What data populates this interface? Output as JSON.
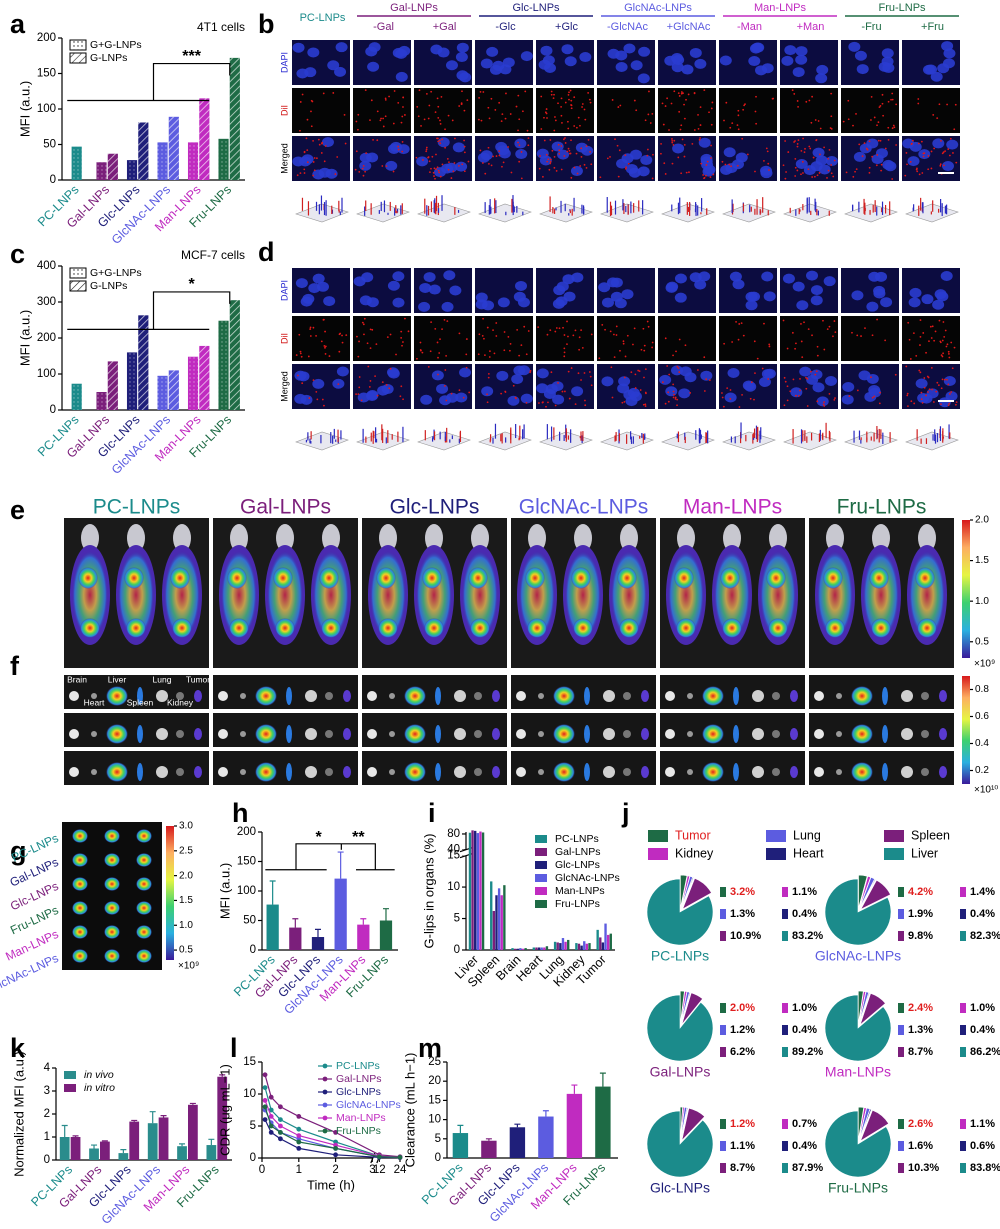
{
  "chart_data": [
    {
      "panel": "a",
      "type": "bar",
      "title": "4T1 cells",
      "ylabel": "MFI (a.u.)",
      "categories": [
        "PC-LNPs",
        "Gal-LNPs",
        "Glc-LNPs",
        "GlcNAc-LNPs",
        "Man-LNPs",
        "Fru-LNPs"
      ],
      "category_colors": [
        "#1b8b8b",
        "#7b1f7b",
        "#1f1f7a",
        "#5c5ce0",
        "#c02bc0",
        "#1e6b45"
      ],
      "series": [
        {
          "name": "G+G-LNPs",
          "pattern": "dots",
          "values": [
            47,
            25,
            28,
            53,
            53,
            58
          ]
        },
        {
          "name": "G-LNPs",
          "pattern": "hatch",
          "values": [
            null,
            37,
            81,
            89,
            115,
            172
          ]
        }
      ],
      "ylim": [
        0,
        200
      ],
      "yticks": [
        0,
        50,
        100,
        150,
        200
      ],
      "significance": [
        "***"
      ],
      "legend": "upper left"
    },
    {
      "panel": "c",
      "type": "bar",
      "title": "MCF-7 cells",
      "ylabel": "MFI (a.u.)",
      "categories": [
        "PC-LNPs",
        "Gal-LNPs",
        "Glc-LNPs",
        "GlcNAc-LNPs",
        "Man-LNPs",
        "Fru-LNPs"
      ],
      "category_colors": [
        "#1b8b8b",
        "#7b1f7b",
        "#1f1f7a",
        "#5c5ce0",
        "#c02bc0",
        "#1e6b45"
      ],
      "series": [
        {
          "name": "G+G-LNPs",
          "pattern": "dots",
          "values": [
            73,
            50,
            160,
            95,
            148,
            248
          ]
        },
        {
          "name": "G-LNPs",
          "pattern": "hatch",
          "values": [
            null,
            135,
            263,
            110,
            178,
            305
          ]
        }
      ],
      "ylim": [
        0,
        400
      ],
      "yticks": [
        0,
        100,
        200,
        300,
        400
      ],
      "significance": [
        "*"
      ],
      "legend": "upper left"
    },
    {
      "panel": "h",
      "type": "bar",
      "ylabel": "MFI (a.u.)",
      "categories": [
        "PC-LNPs",
        "Gal-LNPs",
        "Glc-LNPs",
        "GlcNAc-LNPs",
        "Man-LNPs",
        "Fru-LNPs"
      ],
      "category_colors": [
        "#1b8b8b",
        "#7b1f7b",
        "#1f1f7a",
        "#5c5ce0",
        "#c02bc0",
        "#1e6b45"
      ],
      "values": [
        77,
        38,
        22,
        121,
        43,
        50
      ],
      "errors": [
        40,
        15,
        13,
        45,
        10,
        20
      ],
      "ylim": [
        0,
        200
      ],
      "yticks": [
        0,
        50,
        100,
        150,
        200
      ],
      "significance": [
        "*",
        "**"
      ]
    },
    {
      "panel": "i",
      "type": "bar",
      "ylabel": "G-lips in organs (%)",
      "categories": [
        "Liver",
        "Spleen",
        "Brain",
        "Heart",
        "Lung",
        "Kidney",
        "Tumor"
      ],
      "series": [
        {
          "name": "PC-LNPs",
          "color": "#1b8b8b",
          "values": [
            83.2,
            10.9,
            0.3,
            0.4,
            1.3,
            1.1,
            3.2
          ]
        },
        {
          "name": "Gal-LNPs",
          "color": "#7b1f7b",
          "values": [
            89.2,
            6.2,
            0.2,
            0.4,
            1.2,
            1.0,
            2.0
          ]
        },
        {
          "name": "Glc-LNPs",
          "color": "#1f1f7a",
          "values": [
            87.9,
            8.7,
            0.2,
            0.4,
            1.1,
            0.7,
            1.2
          ]
        },
        {
          "name": "GlcNAc-LNPs",
          "color": "#5c5ce0",
          "values": [
            82.3,
            9.8,
            0.3,
            0.4,
            1.9,
            1.4,
            4.2
          ]
        },
        {
          "name": "Man-LNPs",
          "color": "#c02bc0",
          "values": [
            86.2,
            8.7,
            0.2,
            0.4,
            1.3,
            1.0,
            2.4
          ]
        },
        {
          "name": "Fru-LNPs",
          "color": "#1e6b45",
          "values": [
            83.8,
            10.3,
            0.3,
            0.6,
            1.6,
            1.1,
            2.6
          ]
        }
      ],
      "ylim": [
        0,
        85
      ],
      "axis_break": [
        15,
        40
      ],
      "yticks": [
        0,
        5,
        10,
        15,
        40,
        80
      ],
      "legend": "upper right"
    },
    {
      "panel": "j",
      "type": "pie",
      "categories": [
        "Tumor",
        "Kidney",
        "Lung",
        "Heart",
        "Spleen",
        "Liver"
      ],
      "colors": [
        "#1e6b45",
        "#c02bc0",
        "#5c5ce0",
        "#1f1f7a",
        "#7b1f7b",
        "#1b8b8b"
      ],
      "label_colors": [
        "#e01e1e",
        "#000000",
        "#000000",
        "#000000",
        "#000000",
        "#000000"
      ],
      "pies": [
        {
          "name": "PC-LNPs",
          "color": "#1b8b8b",
          "values": [
            3.2,
            1.1,
            1.3,
            0.4,
            10.9,
            83.2
          ],
          "value_labels": [
            "3.2%",
            "1.1%",
            "1.3%",
            "0.4%",
            "10.9%",
            "83.2%"
          ]
        },
        {
          "name": "GlcNAc-LNPs",
          "color": "#5c5ce0",
          "values": [
            4.2,
            1.4,
            1.9,
            0.4,
            9.8,
            82.3
          ],
          "value_labels": [
            "4.2%",
            "1.4%",
            "1.9%",
            "0.4%",
            "9.8%",
            "82.3%"
          ]
        },
        {
          "name": "Gal-LNPs",
          "color": "#7b1f7b",
          "values": [
            2.0,
            1.0,
            1.2,
            0.4,
            6.2,
            89.2
          ],
          "value_labels": [
            "2.0%",
            "1.0%",
            "1.2%",
            "0.4%",
            "6.2%",
            "89.2%"
          ]
        },
        {
          "name": "Man-LNPs",
          "color": "#c02bc0",
          "values": [
            2.4,
            1.0,
            1.3,
            0.4,
            8.7,
            86.2
          ],
          "value_labels": [
            "2.4%",
            "1.0%",
            "1.3%",
            "0.4%",
            "8.7%",
            "86.2%"
          ]
        },
        {
          "name": "Glc-LNPs",
          "color": "#1f1f7a",
          "values": [
            1.2,
            0.7,
            1.1,
            0.4,
            8.7,
            87.9
          ],
          "value_labels": [
            "1.2%",
            "0.7%",
            "1.1%",
            "0.4%",
            "8.7%",
            "87.9%"
          ]
        },
        {
          "name": "Fru-LNPs",
          "color": "#1e6b45",
          "values": [
            2.6,
            1.1,
            1.6,
            0.6,
            10.3,
            83.8
          ],
          "value_labels": [
            "2.6%",
            "1.1%",
            "1.6%",
            "0.6%",
            "10.3%",
            "83.8%"
          ]
        }
      ]
    },
    {
      "panel": "k",
      "type": "bar",
      "ylabel": "Normalized MFI (a.u.)",
      "categories": [
        "PC-LNPs",
        "Gal-LNPs",
        "Glc-LNPs",
        "GlcNAc-LNPs",
        "Man-LNPs",
        "Fru-LNPs"
      ],
      "category_colors": [
        "#1b8b8b",
        "#7b1f7b",
        "#1f1f7a",
        "#5c5ce0",
        "#c02bc0",
        "#1e6b45"
      ],
      "series": [
        {
          "name": "in vivo",
          "color": "#2a8c8c",
          "values": [
            1.0,
            0.5,
            0.3,
            1.6,
            0.6,
            0.65
          ],
          "errors": [
            0.5,
            0.15,
            0.15,
            0.5,
            0.1,
            0.25
          ]
        },
        {
          "name": "in vitro",
          "color": "#7b1f7b",
          "values": [
            1.0,
            0.8,
            1.67,
            1.85,
            2.4,
            3.62
          ],
          "errors": [
            0.05,
            0.03,
            0.05,
            0.08,
            0.06,
            0.08
          ]
        }
      ],
      "ylim": [
        0,
        4
      ],
      "yticks": [
        0,
        1,
        2,
        3,
        4
      ],
      "legend": "upper left",
      "legend_italic": true
    },
    {
      "panel": "l",
      "type": "line",
      "xlabel": "Time (h)",
      "ylabel": "CDR (μg mL−1)",
      "x": [
        0.083,
        0.25,
        0.5,
        1,
        2,
        12,
        24
      ],
      "series": [
        {
          "name": "PC-LNPs",
          "color": "#1b8b8b",
          "values": [
            11,
            7.5,
            6,
            4.5,
            2.5,
            0.3,
            0.1
          ]
        },
        {
          "name": "Gal-LNPs",
          "color": "#7b1f7b",
          "values": [
            13,
            9.5,
            8,
            6.5,
            4,
            0.5,
            0.2
          ]
        },
        {
          "name": "Glc-LNPs",
          "color": "#1f1f7a",
          "values": [
            6,
            4,
            3,
            1.5,
            0.5,
            0.1,
            0.05
          ]
        },
        {
          "name": "GlcNAc-LNPs",
          "color": "#5c5ce0",
          "values": [
            7.5,
            5.5,
            4,
            3,
            1.5,
            0.2,
            0.1
          ]
        },
        {
          "name": "Man-LNPs",
          "color": "#c02bc0",
          "values": [
            9,
            6.5,
            5,
            3.5,
            2,
            0.3,
            0.1
          ]
        },
        {
          "name": "Fru-LNPs",
          "color": "#1e6b45",
          "values": [
            8,
            5,
            4,
            2.5,
            1.5,
            0.2,
            0.1
          ]
        }
      ],
      "xlim": [
        0,
        24
      ],
      "x_axis_break": [
        3,
        12
      ],
      "xticks": [
        0,
        1,
        2,
        3,
        12,
        24
      ],
      "ylim": [
        0,
        15
      ],
      "yticks": [
        0,
        5,
        10,
        15
      ],
      "legend": "upper right"
    },
    {
      "panel": "m",
      "type": "bar",
      "ylabel": "Clearance (mL h−1)",
      "categories": [
        "PC-LNPs",
        "Gal-LNPs",
        "Glc-LNPs",
        "GlcNAc-LNPs",
        "Man-LNPs",
        "Fru-LNPs"
      ],
      "category_colors": [
        "#1b8b8b",
        "#7b1f7b",
        "#1f1f7a",
        "#5c5ce0",
        "#c02bc0",
        "#1e6b45"
      ],
      "values": [
        6.5,
        4.5,
        8,
        10.8,
        16.7,
        18.6
      ],
      "errors": [
        2,
        0.5,
        0.8,
        1.5,
        2.3,
        3.5
      ],
      "ylim": [
        0,
        25
      ],
      "yticks": [
        0,
        5,
        10,
        15,
        20,
        25
      ]
    }
  ],
  "image_panels": {
    "b": {
      "panel": "b",
      "control": "PC-LNPs",
      "control_color": "#1b8b8b",
      "groups": [
        {
          "name": "Gal-LNPs",
          "color": "#7b1f7b",
          "columns": [
            "-Gal",
            "+Gal"
          ]
        },
        {
          "name": "Glc-LNPs",
          "color": "#1f1f7a",
          "columns": [
            "-Glc",
            "+Glc"
          ]
        },
        {
          "name": "GlcNAc-LNPs",
          "color": "#5c5ce0",
          "columns": [
            "-GlcNAc",
            "+GlcNAc"
          ]
        },
        {
          "name": "Man-LNPs",
          "color": "#c02bc0",
          "columns": [
            "-Man",
            "+Man"
          ]
        },
        {
          "name": "Fru-LNPs",
          "color": "#1e6b45",
          "columns": [
            "-Fru",
            "+Fru"
          ]
        }
      ],
      "rows": [
        "DAPI",
        "DiI",
        "Merged"
      ],
      "row_colors": [
        "#2a2ad0",
        "#d01010",
        "#000000"
      ]
    },
    "d": {
      "panel": "d",
      "rows": [
        "DAPI",
        "DiI",
        "Merged"
      ],
      "row_colors": [
        "#2a2ad0",
        "#d01010",
        "#000000"
      ]
    },
    "e": {
      "panel": "e",
      "groups": [
        "PC-LNPs",
        "Gal-LNPs",
        "Glc-LNPs",
        "GlcNAc-LNPs",
        "Man-LNPs",
        "Fru-LNPs"
      ],
      "group_colors": [
        "#1b8b8b",
        "#7b1f7b",
        "#1f1f7a",
        "#5c5ce0",
        "#c02bc0",
        "#1e6b45"
      ],
      "colorbar_lim": [
        0.3,
        2.0
      ],
      "colorbar_ticks": [
        {
          "value": 2,
          "label": "2.0"
        },
        1.5,
        {
          "value": 1,
          "label": "1.0"
        },
        0.5
      ],
      "colorbar_unit": "×10⁹"
    },
    "f": {
      "panel": "f",
      "organs": [
        "Brain",
        "Liver",
        "Lung",
        "Tumor",
        "Heart",
        "Spleen",
        "Kidney"
      ],
      "colorbar_lim": [
        0.1,
        0.9
      ],
      "colorbar_ticks": [
        0.8,
        0.6,
        0.4,
        0.2
      ],
      "colorbar_unit": "×10¹⁰"
    },
    "g": {
      "panel": "g",
      "rows": [
        "PC-LNPs",
        "Gal-LNPs",
        "Glc-LNPs",
        "Fru-LNPs",
        "Man-LNPs",
        "GlcNAc-LNPs"
      ],
      "row_colors": [
        "#1b8b8b",
        "#1f1f7a",
        "#7b1f7b",
        "#1e6b45",
        "#c02bc0",
        "#5c5ce0"
      ],
      "colorbar_lim": [
        0.3,
        3.0
      ],
      "colorbar_ticks": [
        {
          "value": 3,
          "label": "3.0"
        },
        2.5,
        {
          "value": 2,
          "label": "2.0"
        },
        1.5,
        {
          "value": 1,
          "label": "1.0"
        },
        0.5
      ],
      "colorbar_unit": "×10⁹"
    }
  }
}
